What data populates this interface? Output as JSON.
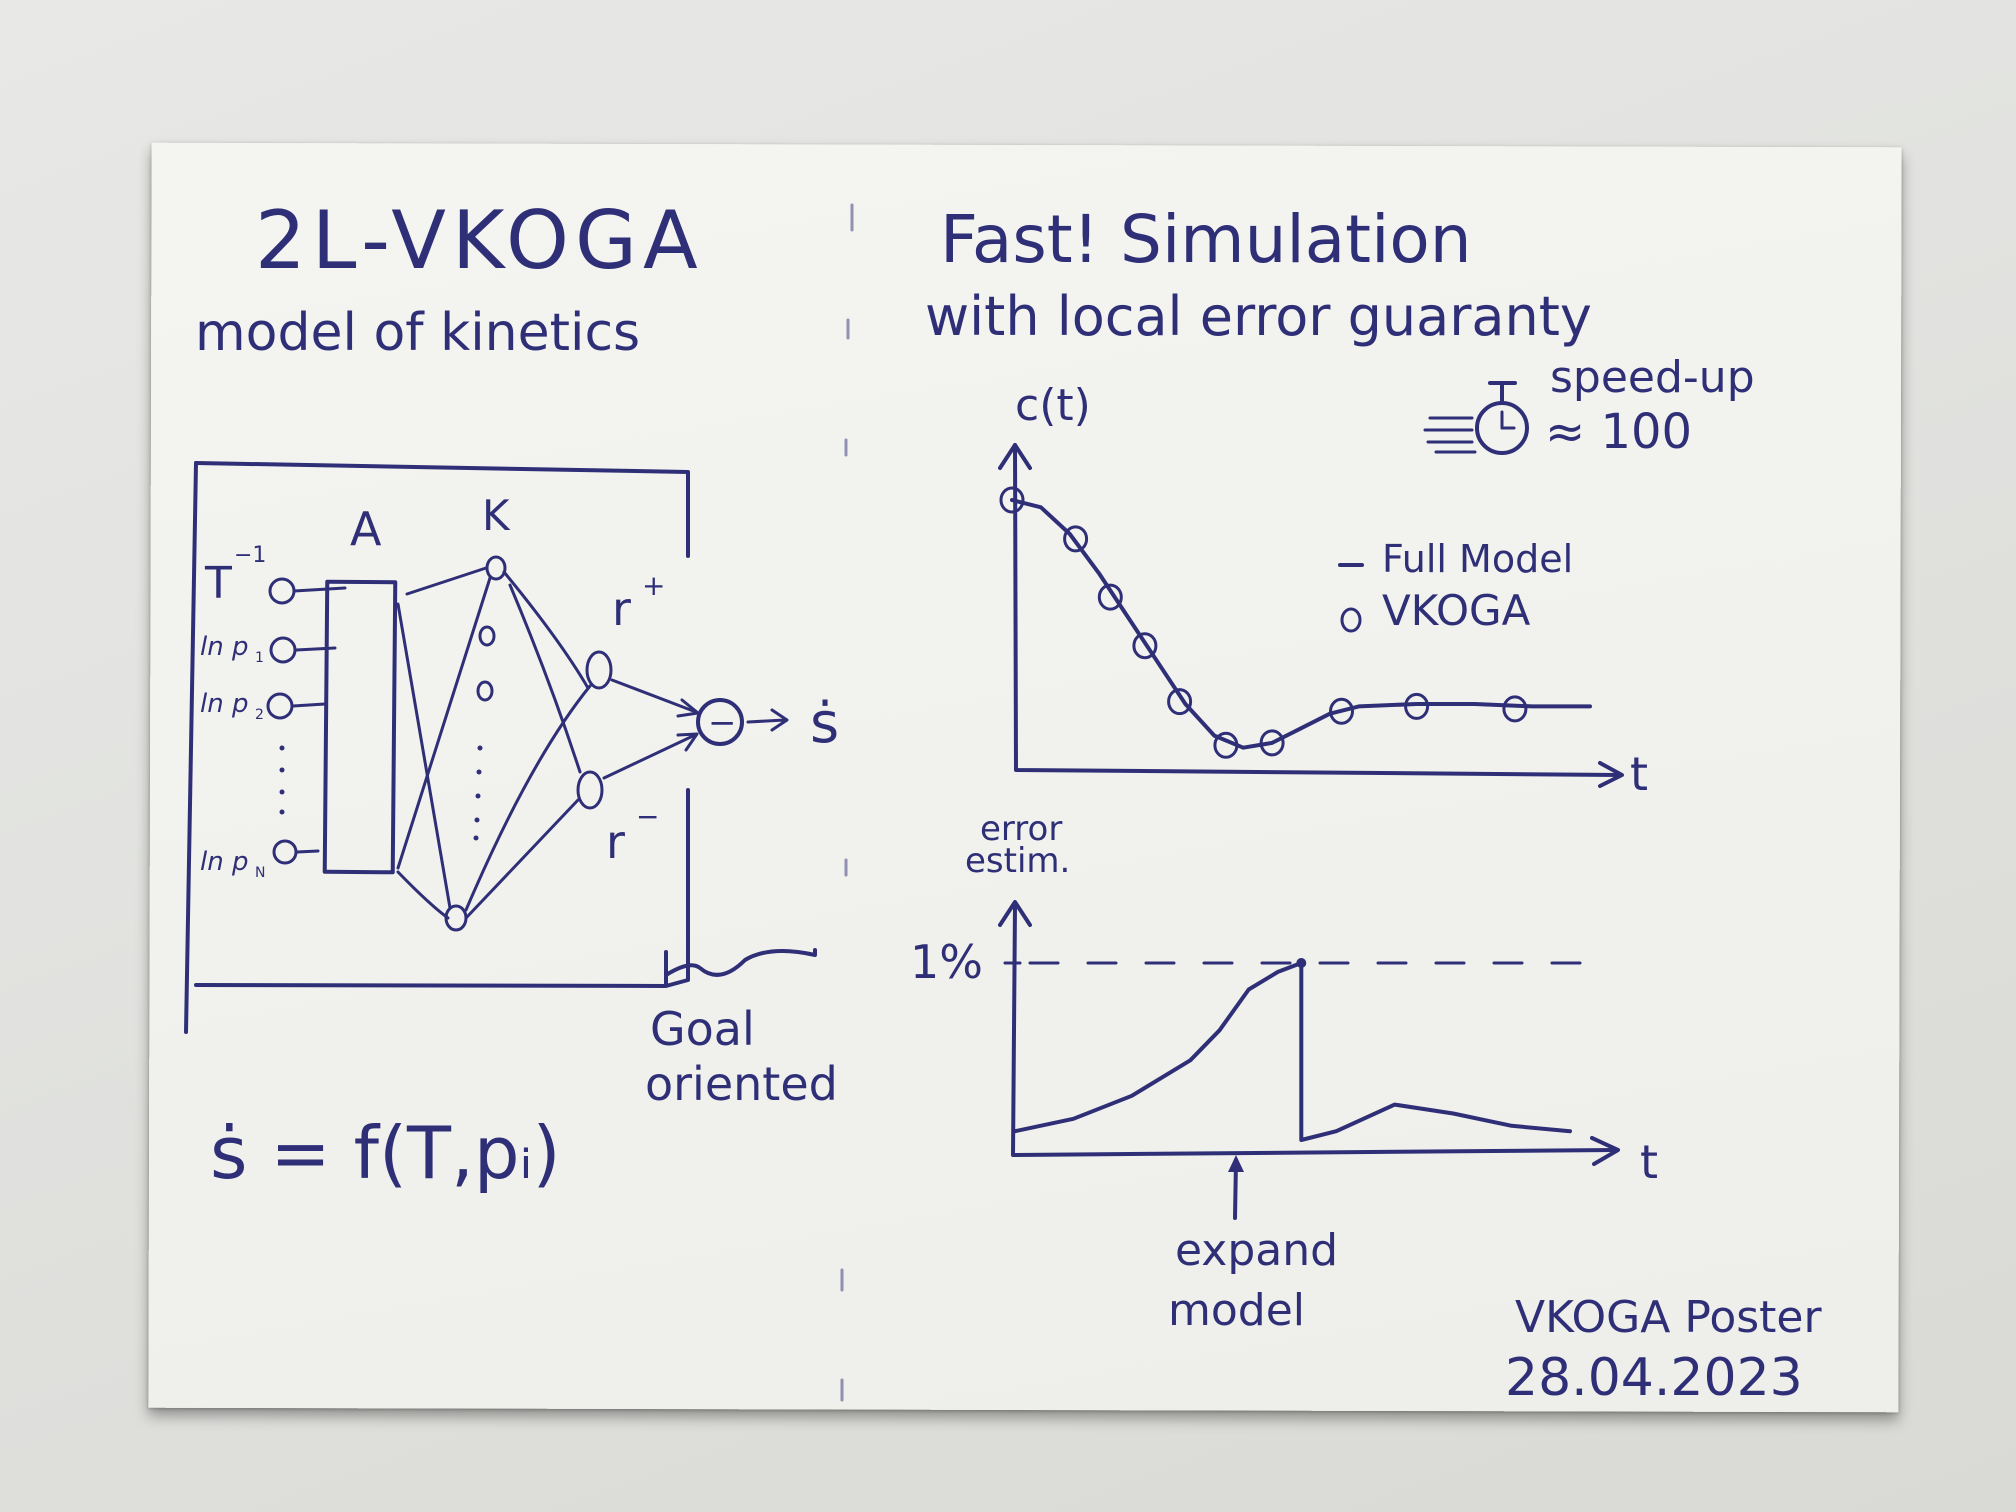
{
  "left": {
    "title": "2L-VKOGA",
    "subtitle": "model of kinetics",
    "network": {
      "layer_a": "A",
      "layer_k": "K",
      "inputs": [
        "T",
        "ln p",
        "ln p",
        "ln p"
      ],
      "input_superscript": "−1",
      "input_subscripts": [
        "1",
        "2",
        "N"
      ],
      "output_plus": "r",
      "output_plus_sup": "+",
      "output_minus": "r",
      "output_minus_sup": "−",
      "combiner": "−",
      "result": "ṡ",
      "goal_line1": "Goal",
      "goal_line2": "oriented"
    },
    "formula": "ṡ = f(T,pᵢ)"
  },
  "right": {
    "title_line1": "Fast!  Simulation",
    "title_line2": "with local error guaranty",
    "speedup_line1": "speed-up",
    "speedup_line2": "≈ 100",
    "chart_data": [
      {
        "type": "line",
        "ylabel": "c(t)",
        "xlabel": "t",
        "legend": [
          "Full Model",
          "VKOGA"
        ],
        "series": [
          {
            "name": "Full Model",
            "x": [
              0,
              0.5,
              1,
              1.5,
              2,
              2.5,
              3,
              3.5,
              4,
              4.5,
              5,
              5.5,
              6,
              7,
              8,
              9,
              10
            ],
            "values": [
              1.0,
              0.97,
              0.86,
              0.7,
              0.52,
              0.34,
              0.16,
              0.03,
              -0.02,
              0.0,
              0.06,
              0.12,
              0.15,
              0.16,
              0.16,
              0.15,
              0.15
            ]
          },
          {
            "name": "VKOGA",
            "x": [
              0,
              1.1,
              1.7,
              2.3,
              2.9,
              3.7,
              4.5,
              5.7,
              7.0,
              8.7
            ],
            "values": [
              1.0,
              0.84,
              0.6,
              0.4,
              0.17,
              -0.01,
              0.0,
              0.13,
              0.15,
              0.14
            ]
          }
        ]
      },
      {
        "type": "line",
        "ylabel": "error estim.",
        "xlabel": "t",
        "threshold_label": "1%",
        "threshold": 1,
        "annotation": "expand model",
        "series": [
          {
            "name": "",
            "x": [
              0,
              1,
              2,
              3,
              3.5,
              4,
              4.5,
              4.9,
              4.9,
              5.5,
              6.5,
              7.5,
              8.5,
              9.5
            ],
            "values": [
              0.05,
              0.12,
              0.25,
              0.45,
              0.62,
              0.85,
              0.95,
              1.0,
              0.0,
              0.05,
              0.2,
              0.15,
              0.08,
              0.05
            ]
          }
        ]
      }
    ],
    "signature_line1": "VKOGA Poster",
    "signature_line2": "28.04.2023"
  }
}
